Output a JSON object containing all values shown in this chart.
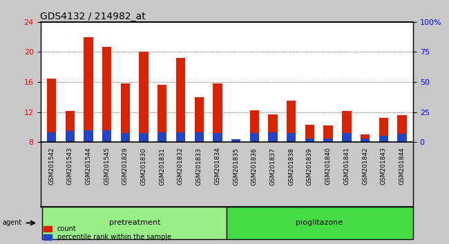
{
  "title": "GDS4132 / 214982_at",
  "categories": [
    "GSM201542",
    "GSM201543",
    "GSM201544",
    "GSM201545",
    "GSM201829",
    "GSM201830",
    "GSM201831",
    "GSM201832",
    "GSM201833",
    "GSM201834",
    "GSM201835",
    "GSM201836",
    "GSM201837",
    "GSM201838",
    "GSM201839",
    "GSM201840",
    "GSM201841",
    "GSM201842",
    "GSM201843",
    "GSM201844"
  ],
  "count_values": [
    16.5,
    12.1,
    22.0,
    20.7,
    15.8,
    20.0,
    15.6,
    19.2,
    14.0,
    15.8,
    8.3,
    12.2,
    11.7,
    13.5,
    10.3,
    10.2,
    12.1,
    9.0,
    11.2,
    11.6
  ],
  "percentile_values": [
    9.3,
    9.5,
    9.6,
    9.6,
    9.2,
    9.2,
    9.3,
    9.3,
    9.3,
    9.2,
    8.4,
    9.2,
    9.3,
    9.2,
    8.5,
    8.5,
    9.2,
    8.5,
    8.8,
    9.1
  ],
  "ylim_left": [
    8,
    24
  ],
  "ylim_right": [
    0,
    100
  ],
  "yticks_left": [
    8,
    12,
    16,
    20,
    24
  ],
  "yticks_right": [
    0,
    25,
    50,
    75,
    100
  ],
  "bar_color_red": "#dd2200",
  "bar_color_blue": "#2244cc",
  "base_value": 8.0,
  "group1_label": "pretreatment",
  "group2_label": "pioglitazone",
  "group1_count": 10,
  "group2_count": 10,
  "group1_color": "#99ee88",
  "group2_color": "#44dd44",
  "agent_label": "agent",
  "title_fontsize": 10,
  "tick_fontsize": 6.5,
  "legend_label_count": "count",
  "legend_label_percentile": "percentile rank within the sample",
  "bar_width": 0.5,
  "bg_color": "#c8c8c8",
  "plot_bg_color": "#ffffff",
  "tick_area_bg": "#d0d0d0"
}
